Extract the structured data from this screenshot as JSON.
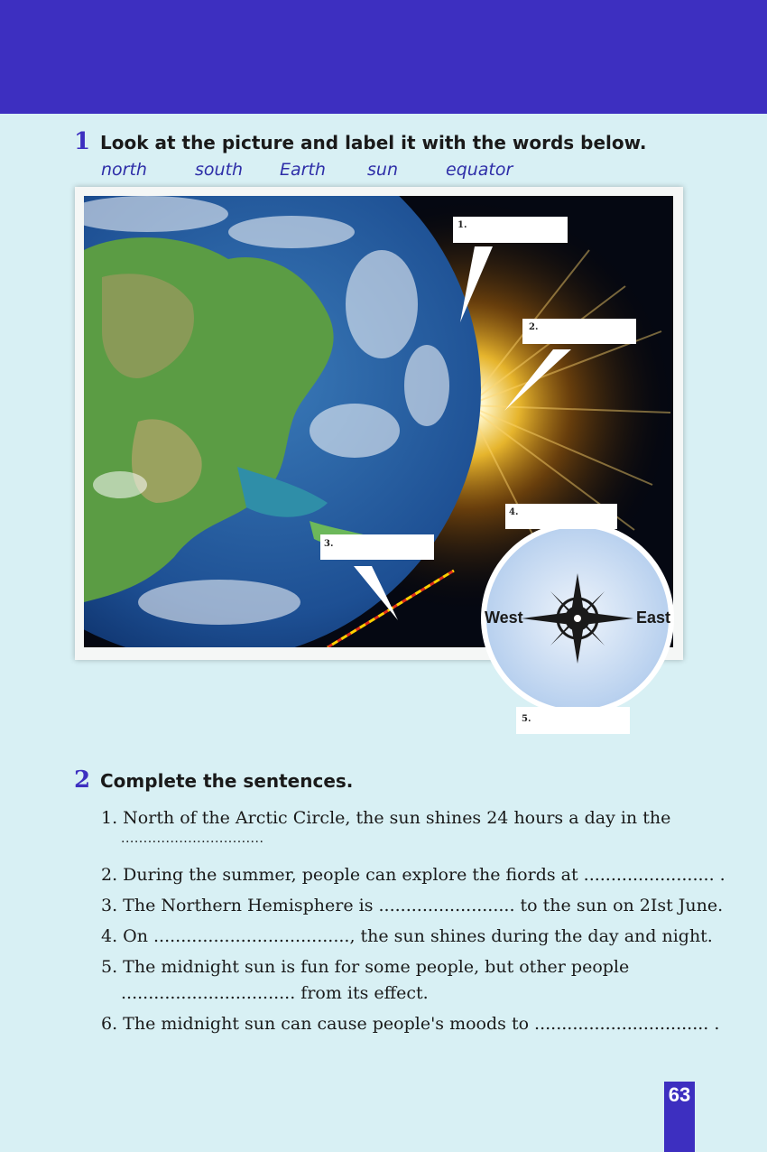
{
  "exercise1": {
    "number": "1",
    "title": "Look at the picture and label it with the words below.",
    "words": [
      "north",
      "south",
      "Earth",
      "sun",
      "equator"
    ],
    "labels": [
      "1.",
      "2.",
      "3.",
      "4.",
      "5."
    ],
    "compass": {
      "west": "West",
      "east": "East"
    }
  },
  "exercise2": {
    "number": "2",
    "title": "Complete the sentences.",
    "sentences": [
      "1. North of the Arctic Circle, the sun shines 24 hours a day in the",
      "................................",
      "2. During the summer, people can explore the fiords at ........................ .",
      "3. The Northern Hemisphere is ......................... to the sun on 2Ist June.",
      "4. On ...................................., the sun shines during the day and night.",
      "5. The midnight sun is fun for some people, but other people",
      "................................ from its effect.",
      "6. The midnight sun can cause people's moods to ................................ ."
    ]
  },
  "page_number": "63",
  "colors": {
    "accent": "#3d2fc0",
    "background": "#d8f0f4",
    "word_color": "#2e2ea8"
  }
}
